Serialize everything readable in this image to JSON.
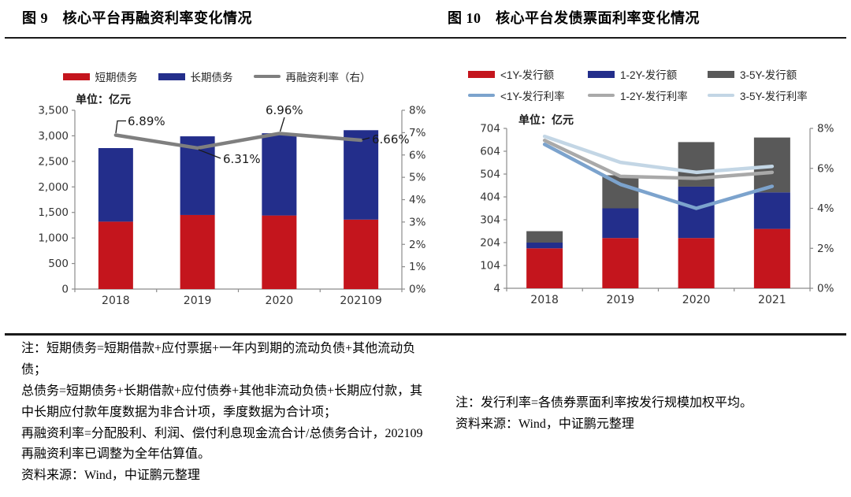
{
  "panels": [
    {
      "title": "图 9　核心平台再融资利率变化情况",
      "unit_label": "单位：亿元",
      "notes": [
        "注：短期债务=短期借款+应付票据+一年内到期的流动负债+其他流动负债；",
        "总债务=短期债务+长期借款+应付债券+其他非流动负债+长期应付款，其中长期应付款年度数据为非合计项，季度数据为合计项；",
        "再融资利率=分配股利、利润、偿付利息现金流合计/总债务合计，202109 再融资利率已调整为全年估算值。",
        "资料来源：Wind，中证鹏元整理"
      ]
    },
    {
      "title": "图 10　核心平台发债票面利率变化情况",
      "unit_label": "单位：亿元",
      "notes": [
        "注：发行利率=各债券票面利率按发行规模加权平均。",
        "资料来源：Wind，中证鹏元整理"
      ]
    }
  ],
  "chart_data": [
    {
      "type": "bar",
      "subtype": "stacked-bars-with-line",
      "title": "核心平台再融资利率变化情况",
      "unit": "亿元",
      "categories": [
        "2018",
        "2019",
        "2020",
        "202109"
      ],
      "bar_series": [
        {
          "name": "短期债务",
          "color": "#C4151D",
          "values": [
            1320,
            1450,
            1440,
            1360
          ]
        },
        {
          "name": "长期债务",
          "color": "#232E8B",
          "values": [
            1440,
            1540,
            1610,
            1750
          ]
        }
      ],
      "line_series": [
        {
          "name": "再融资利率（右）",
          "color": "#7F7F7F",
          "axis": "right",
          "values": [
            6.89,
            6.31,
            6.96,
            6.66
          ],
          "point_labels": [
            "6.89%",
            "6.31%",
            "6.96%",
            "6.66%"
          ]
        }
      ],
      "left_axis": {
        "min": 0,
        "max": 3500,
        "tick_labels": [
          "0",
          "500",
          "1,000",
          "1,500",
          "2,000",
          "2,500",
          "3,000",
          "3,500"
        ]
      },
      "right_axis": {
        "min": 0,
        "max": 8,
        "tick_labels": [
          "0%",
          "1%",
          "2%",
          "3%",
          "4%",
          "5%",
          "6%",
          "7%",
          "8%"
        ]
      },
      "grid": false,
      "legend_position": "top"
    },
    {
      "type": "bar",
      "subtype": "stacked-bars-with-lines",
      "title": "核心平台发债票面利率变化情况",
      "unit": "亿元",
      "categories": [
        "2018",
        "2019",
        "2020",
        "2021"
      ],
      "bar_series": [
        {
          "name": "<1Y-发行额",
          "color": "#C4151D",
          "values": [
            175,
            220,
            220,
            260
          ]
        },
        {
          "name": "1-2Y-发行额",
          "color": "#232E8B",
          "values": [
            25,
            130,
            225,
            160
          ]
        },
        {
          "name": "3-5Y-发行额",
          "color": "#595959",
          "values": [
            50,
            145,
            195,
            240
          ]
        }
      ],
      "line_series": [
        {
          "name": "<1Y-发行利率",
          "color": "#7CA3CD",
          "axis": "right",
          "values": [
            7.2,
            5.2,
            4.0,
            5.1
          ]
        },
        {
          "name": "1-2Y-发行利率",
          "color": "#A9A9A9",
          "axis": "right",
          "values": [
            7.4,
            5.6,
            5.5,
            5.8
          ]
        },
        {
          "name": "3-5Y-发行利率",
          "color": "#C3D6E5",
          "axis": "right",
          "values": [
            7.6,
            6.3,
            5.8,
            6.1
          ]
        }
      ],
      "left_axis": {
        "min": 4,
        "max": 704,
        "tick_labels": [
          "4",
          "104",
          "204",
          "304",
          "404",
          "504",
          "604",
          "704"
        ]
      },
      "right_axis": {
        "min": 0,
        "max": 8,
        "tick_labels": [
          "0%",
          "2%",
          "4%",
          "6%",
          "8%"
        ]
      },
      "grid": false,
      "legend_position": "top"
    }
  ]
}
